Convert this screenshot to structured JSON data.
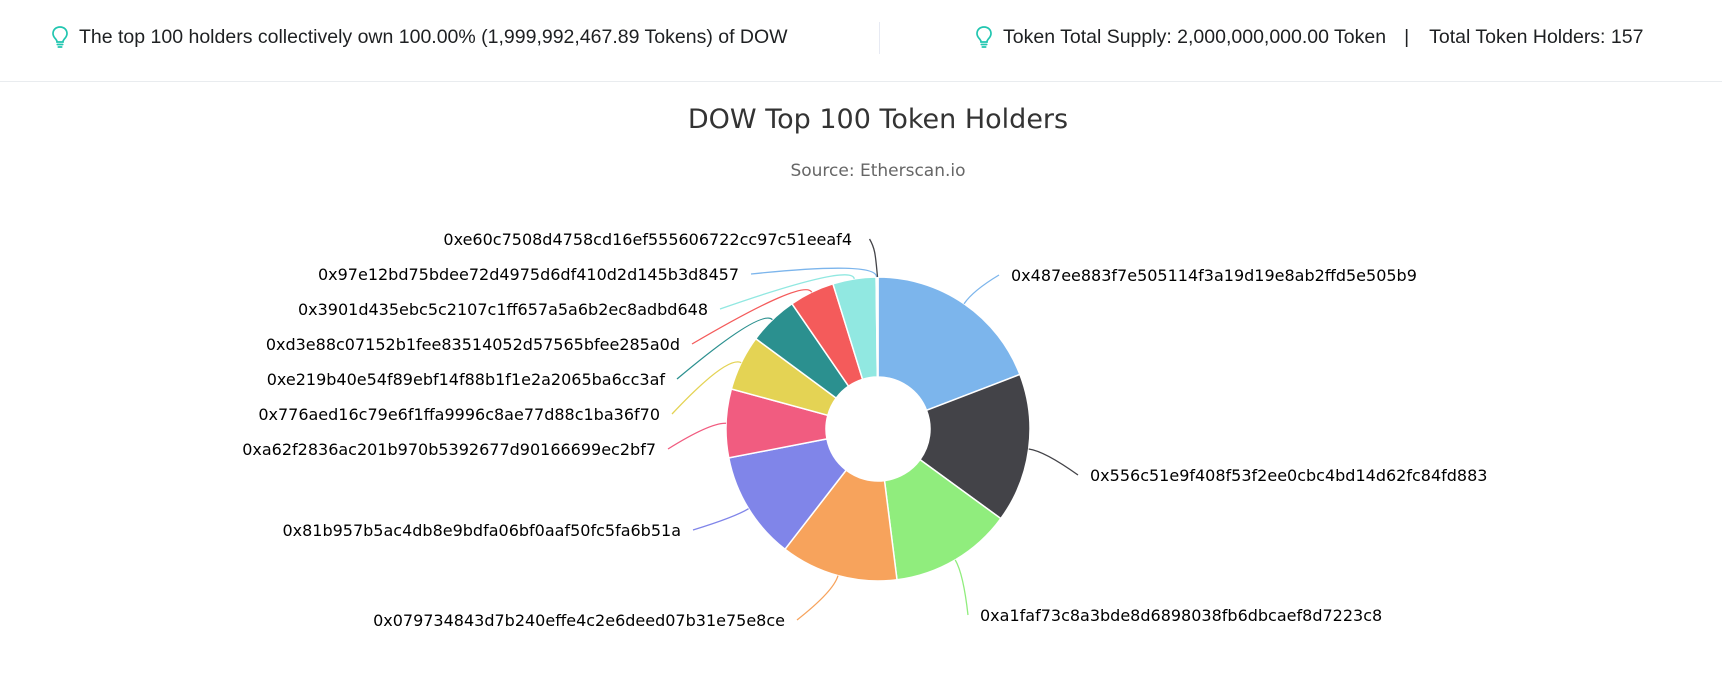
{
  "summary": {
    "holders_text": "The top 100 holders collectively own 100.00% (1,999,992,467.89 Tokens) of DOW",
    "supply_text": "Token Total Supply: 2,000,000,000.00 Token",
    "separator": "|",
    "total_holders_text": "Total Token Holders: 157"
  },
  "icons": {
    "info": "lightbulb-icon"
  },
  "colors": {
    "accent": "#21c6b0",
    "title": "#333333",
    "subtitle": "#666666"
  },
  "chart_data": {
    "type": "pie",
    "donut": true,
    "title": "DOW Top 100 Token Holders",
    "subtitle": "Source: Etherscan.io",
    "slices": [
      {
        "label": "0x487ee883f7e505114f3a19d19e8ab2ffd5e505b9",
        "value": 19.2,
        "color": "#7cb5ec"
      },
      {
        "label": "0x556c51e9f408f53f2ee0cbc4bd14d62fc84fd883",
        "value": 15.9,
        "color": "#434348"
      },
      {
        "label": "0xa1faf73c8a3bde8d6898038fb6dbcaef8d7223c8",
        "value": 13.0,
        "color": "#90ed7d"
      },
      {
        "label": "0x079734843d7b240effe4c2e6deed07b31e75e8ce",
        "value": 12.5,
        "color": "#f7a35c"
      },
      {
        "label": "0x81b957b5ac4db8e9bdfa06bf0aaf50fc5fa6b51a",
        "value": 11.5,
        "color": "#8085e9"
      },
      {
        "label": "0xa62f2836ac201b970b5392677d90166699ec2bf7",
        "value": 7.3,
        "color": "#f15c80"
      },
      {
        "label": "0x776aed16c79e6f1ffa9996c8ae77d88c1ba36f70",
        "value": 5.9,
        "color": "#e4d354"
      },
      {
        "label": "0xe219b40e54f89ebf14f88b1f1e2a2065ba6cc3af",
        "value": 5.3,
        "color": "#2b908f"
      },
      {
        "label": "0xd3e88c07152b1fee83514052d57565bfee285a0d",
        "value": 4.8,
        "color": "#f45b5b"
      },
      {
        "label": "0x3901d435ebc5c2107c1ff657a5a6b2ec8adbd648",
        "value": 4.6,
        "color": "#91e8e1"
      },
      {
        "label": "0x97e12bd75bdee72d4975d6df410d2d145b3d8457",
        "value": 0.1,
        "color": "#7cb5ec"
      },
      {
        "label": "0xe60c7508d4758cd16ef555606722cc97c51eeaf4",
        "value": 0.1,
        "color": "#434348"
      }
    ]
  }
}
